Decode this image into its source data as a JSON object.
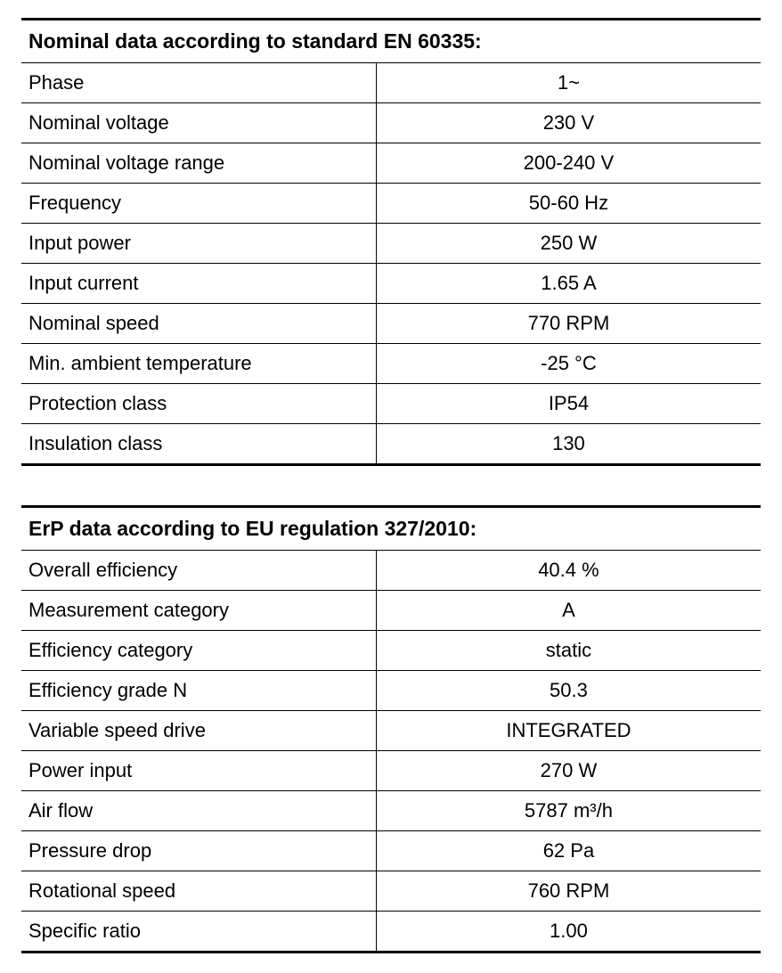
{
  "tables": [
    {
      "title": "Nominal data according to standard EN 60335:",
      "rows": [
        {
          "label": "Phase",
          "value": "1~"
        },
        {
          "label": "Nominal voltage",
          "value": "230 V"
        },
        {
          "label": "Nominal voltage range",
          "value": "200-240 V"
        },
        {
          "label": "Frequency",
          "value": "50-60 Hz"
        },
        {
          "label": "Input power",
          "value": "250 W"
        },
        {
          "label": "Input current",
          "value": "1.65 A"
        },
        {
          "label": "Nominal speed",
          "value": "770 RPM"
        },
        {
          "label": "Min. ambient temperature",
          "value": "-25 °C"
        },
        {
          "label": "Protection class",
          "value": "IP54"
        },
        {
          "label": "Insulation class",
          "value": "130"
        }
      ]
    },
    {
      "title": "ErP data according to EU regulation 327/2010:",
      "rows": [
        {
          "label": "Overall efficiency",
          "value": "40.4 %"
        },
        {
          "label": "Measurement category",
          "value": "A"
        },
        {
          "label": "Efficiency category",
          "value": "static"
        },
        {
          "label": "Efficiency grade N",
          "value": "50.3"
        },
        {
          "label": "Variable speed drive",
          "value": "INTEGRATED"
        },
        {
          "label": "Power input",
          "value": "270 W"
        },
        {
          "label": "Air flow",
          "value": "5787 m³/h"
        },
        {
          "label": "Pressure drop",
          "value": "62 Pa"
        },
        {
          "label": "Rotational speed",
          "value": "760 RPM"
        },
        {
          "label": "Specific ratio",
          "value": "1.00"
        }
      ]
    }
  ],
  "styling": {
    "background_color": "#ffffff",
    "text_color": "#000000",
    "border_color": "#000000",
    "header_border_top_width": 3,
    "header_border_bottom_width": 1,
    "row_border_width": 1,
    "last_row_border_width": 3,
    "header_font_size": 23,
    "header_font_weight": 700,
    "cell_font_size": 22,
    "cell_font_weight": 400,
    "col_label_width_pct": 48,
    "table_spacing": 44,
    "cell_padding_v": 9,
    "cell_padding_h": 8
  }
}
